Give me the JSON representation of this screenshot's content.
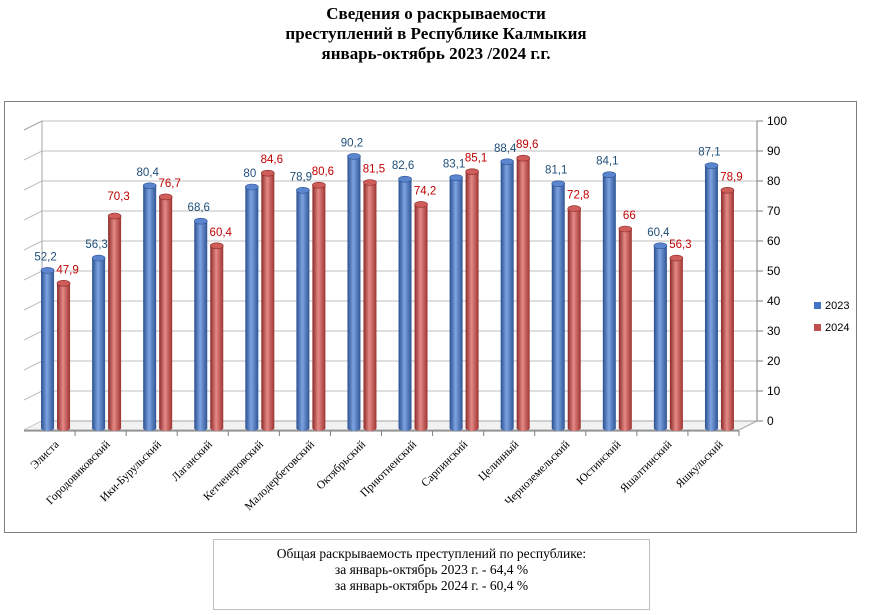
{
  "title": {
    "line1": "Сведения о раскрываемости",
    "line2": "преступлений в  Республике Калмыкия",
    "line3": "январь-октябрь 2023 /2024 г.г."
  },
  "summary": {
    "line1": "Общая раскрываемость преступлений  по республике:",
    "line2": "за январь-октябрь 2023 г.  - 64,4 %",
    "line3": "за январь-октябрь 2024 г.  - 60,4 %"
  },
  "chart_data": {
    "type": "bar",
    "title": "",
    "xlabel": "",
    "ylabel": "",
    "ylim": [
      0,
      100
    ],
    "yticks": [
      "0",
      "10",
      "20",
      "30",
      "40",
      "50",
      "60",
      "70",
      "80",
      "90",
      "100"
    ],
    "grid": true,
    "legend_position": "right",
    "categories": [
      "Элиста",
      "Городовиковский",
      "Ики-Бурульский",
      "Лаганский",
      "Кетченеровский",
      "Малодербетовский",
      "Октябрьский",
      "Приютненский",
      "Сарпинский",
      "Целинный",
      "Черноземельский",
      "Юстинский",
      "Яшалтинский",
      "Яшкульский"
    ],
    "series": [
      {
        "name": "2023",
        "color": "#4472C4",
        "label_color": "#1F4E79",
        "values": [
          52.2,
          56.3,
          80.4,
          68.6,
          80,
          78.9,
          90.2,
          82.6,
          83.1,
          88.4,
          81.1,
          84.1,
          60.4,
          87.1
        ],
        "labels": [
          "52,2",
          "56,3",
          "80,4",
          "68,6",
          "80",
          "78,9",
          "90,2",
          "82,6",
          "83,1",
          "88,4",
          "81,1",
          "84,1",
          "60,4",
          "87,1"
        ]
      },
      {
        "name": "2024",
        "color": "#C0504D",
        "label_color": "#C00000",
        "values": [
          47.9,
          70.3,
          76.7,
          60.4,
          84.6,
          80.6,
          81.5,
          74.2,
          85.1,
          89.6,
          72.8,
          66,
          56.3,
          78.9
        ],
        "labels": [
          "47,9",
          "70,3",
          "76,7",
          "60,4",
          "84,6",
          "80,6",
          "81,5",
          "74,2",
          "85,1",
          "89,6",
          "72,8",
          "66",
          "56,3",
          "78,9"
        ]
      }
    ]
  }
}
